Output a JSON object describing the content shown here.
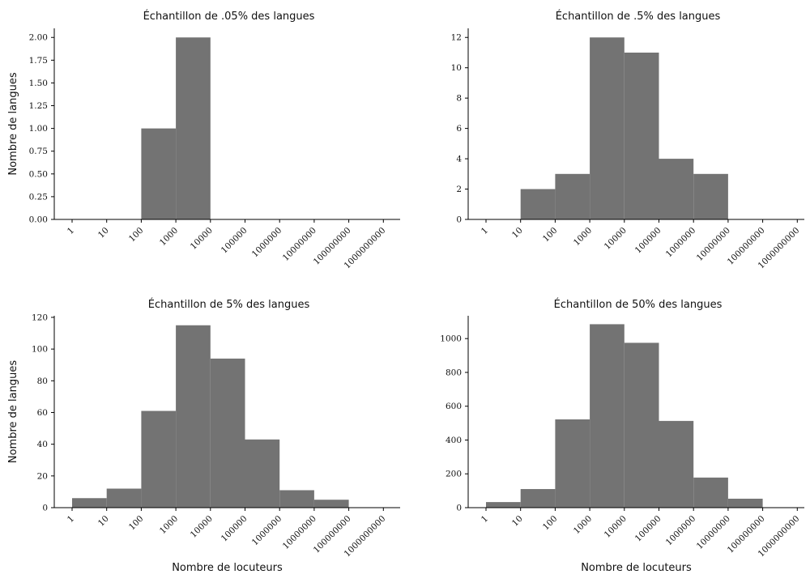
{
  "chart_data": [
    {
      "type": "bar",
      "title": "Échantillon de .05% des langues",
      "xlabel": "",
      "ylabel": "Nombre de langues",
      "x_ticks": [
        "1",
        "10",
        "100",
        "1000",
        "10000",
        "100000",
        "1000000",
        "10000000",
        "100000000",
        "1000000000"
      ],
      "y_ticks": [
        "0.00",
        "0.25",
        "0.50",
        "0.75",
        "1.00",
        "1.25",
        "1.50",
        "1.75",
        "2.00"
      ],
      "ylim": [
        0,
        2.1
      ],
      "values": [
        0,
        0,
        1,
        2,
        0,
        0,
        0,
        0,
        0
      ],
      "bar_color": "#737373"
    },
    {
      "type": "bar",
      "title": "Échantillon de .5% des langues",
      "xlabel": "",
      "ylabel": "",
      "x_ticks": [
        "1",
        "10",
        "100",
        "1000",
        "10000",
        "100000",
        "1000000",
        "10000000",
        "100000000",
        "1000000000"
      ],
      "y_ticks": [
        "0",
        "2",
        "4",
        "6",
        "8",
        "10",
        "12"
      ],
      "ylim": [
        0,
        12.6
      ],
      "values": [
        0,
        2,
        3,
        12,
        11,
        4,
        3,
        0,
        0
      ],
      "bar_color": "#737373"
    },
    {
      "type": "bar",
      "title": "Échantillon de 5% des langues",
      "xlabel": "Nombre de locuteurs",
      "ylabel": "Nombre de langues",
      "x_ticks": [
        "1",
        "10",
        "100",
        "1000",
        "10000",
        "100000",
        "1000000",
        "10000000",
        "100000000",
        "1000000000"
      ],
      "y_ticks": [
        "0",
        "20",
        "40",
        "60",
        "80",
        "100",
        "120"
      ],
      "ylim": [
        0,
        121
      ],
      "values": [
        6,
        12,
        61,
        115,
        94,
        43,
        11,
        5,
        0
      ],
      "bar_color": "#737373"
    },
    {
      "type": "bar",
      "title": "Échantillon de 50% des langues",
      "xlabel": "Nombre de locuteurs",
      "ylabel": "",
      "x_ticks": [
        "1",
        "10",
        "100",
        "1000",
        "10000",
        "100000",
        "1000000",
        "10000000",
        "100000000",
        "1000000000"
      ],
      "y_ticks": [
        "0",
        "200",
        "400",
        "600",
        "800",
        "1000"
      ],
      "ylim": [
        0,
        1135
      ],
      "values": [
        33,
        110,
        522,
        1085,
        975,
        513,
        178,
        53,
        0
      ],
      "bar_color": "#737373"
    }
  ]
}
